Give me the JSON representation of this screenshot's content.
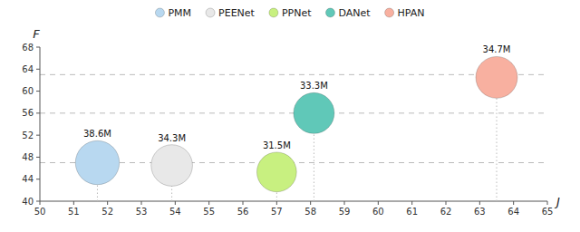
{
  "chart_data": {
    "type": "scatter",
    "xlabel": "J",
    "ylabel": "F",
    "series": [
      {
        "name": "PMM",
        "color": "#b8d8f0",
        "x": [
          51.7
        ],
        "values": [
          47.0
        ],
        "sizes": [
          38.6
        ],
        "size_labels": [
          "38.6M"
        ]
      },
      {
        "name": "PEENet",
        "color": "#e8e8e8",
        "x": [
          53.9
        ],
        "values": [
          46.5
        ],
        "sizes": [
          34.3
        ],
        "size_labels": [
          "34.3M"
        ]
      },
      {
        "name": "PPNet",
        "color": "#c8f080",
        "x": [
          57.0
        ],
        "values": [
          45.3
        ],
        "sizes": [
          31.5
        ],
        "size_labels": [
          "31.5M"
        ]
      },
      {
        "name": "DANet",
        "color": "#60c8b8",
        "x": [
          58.1
        ],
        "values": [
          56.0
        ],
        "sizes": [
          33.3
        ],
        "size_labels": [
          "33.3M"
        ]
      },
      {
        "name": "HPAN",
        "color": "#f8b0a0",
        "x": [
          63.5
        ],
        "values": [
          62.5
        ],
        "sizes": [
          34.7
        ],
        "size_labels": [
          "34.7M"
        ]
      }
    ],
    "xlim": [
      50,
      65
    ],
    "ylim": [
      40,
      68
    ],
    "xticks": [
      50,
      51,
      52,
      53,
      54,
      55,
      56,
      57,
      58,
      59,
      60,
      61,
      62,
      63,
      64,
      65
    ],
    "yticks": [
      40,
      44,
      48,
      52,
      56,
      60,
      64,
      68
    ],
    "reference_lines": [
      47.0,
      56.0,
      63.0
    ],
    "grid": false,
    "legend": "top"
  }
}
